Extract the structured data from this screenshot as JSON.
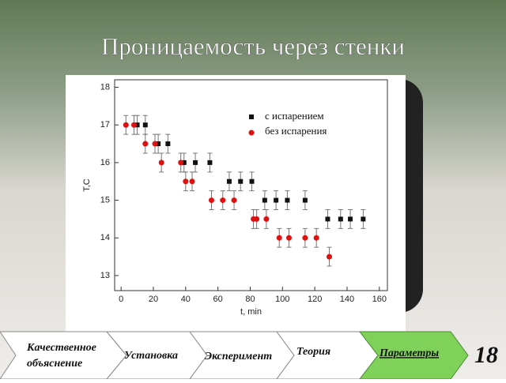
{
  "slide_title": "Проницаемость через стенки",
  "nav": {
    "tabs": [
      "Качественное",
      "объяснение",
      "Установка",
      "Эксперимент",
      "Теория",
      "Параметры"
    ],
    "page": "18"
  },
  "chart_data": {
    "type": "scatter",
    "x_label": "t, min",
    "y_label": "T,C",
    "xlim": [
      -4,
      165
    ],
    "ylim": [
      12.6,
      18.2
    ],
    "xticks": [
      0,
      20,
      40,
      60,
      80,
      100,
      120,
      140,
      160
    ],
    "yticks": [
      13,
      14,
      15,
      16,
      17,
      18
    ],
    "series": [
      {
        "name": "с испарением",
        "color": "#111111",
        "marker": "square",
        "error": 0.25,
        "x": [
          10,
          15,
          23,
          29,
          39,
          46,
          55,
          67,
          74,
          81,
          89,
          96,
          103,
          114,
          128,
          136,
          142,
          150
        ],
        "values": [
          17,
          17,
          16.5,
          16.5,
          16,
          16,
          16,
          15.5,
          15.5,
          15.5,
          15,
          15,
          15,
          15,
          14.5,
          14.5,
          14.5,
          14.5
        ]
      },
      {
        "name": "без испарения",
        "color": "#e01010",
        "marker": "circle",
        "error": 0.25,
        "x": [
          3,
          8,
          15,
          21,
          25,
          37,
          40,
          44,
          56,
          63,
          70,
          82,
          84,
          90,
          98,
          104,
          114,
          121,
          129
        ],
        "values": [
          17,
          17,
          16.5,
          16.5,
          16,
          16,
          15.5,
          15.5,
          15,
          15,
          15,
          14.5,
          14.5,
          14.5,
          14,
          14,
          14,
          14,
          13.5
        ]
      }
    ]
  }
}
